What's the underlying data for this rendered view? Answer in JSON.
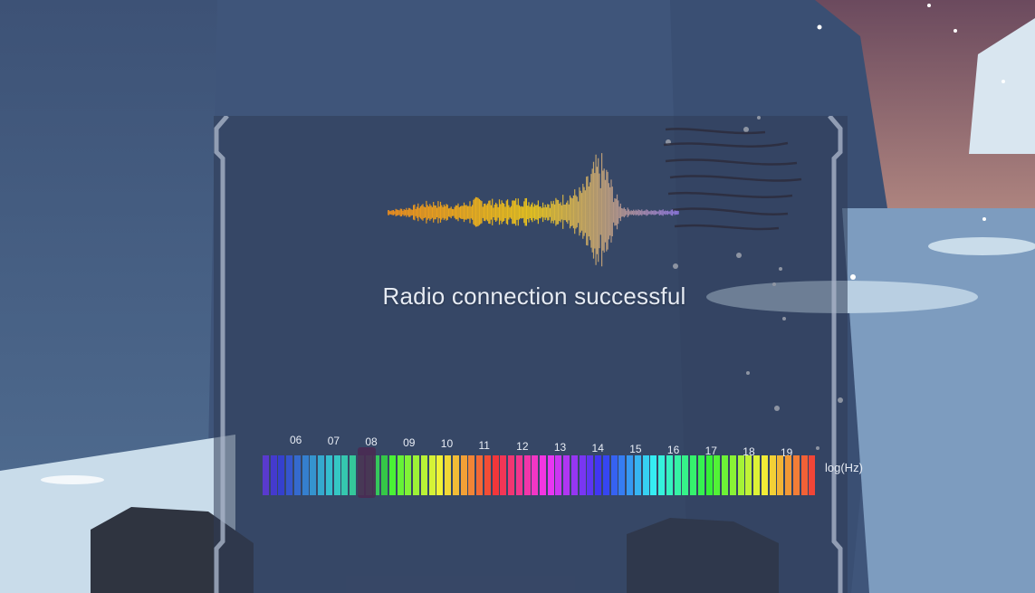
{
  "hud": {
    "status_text": "Radio connection successful",
    "unit_label": "log(Hz)",
    "ticks": [
      "06",
      "07",
      "08",
      "09",
      "10",
      "11",
      "12",
      "13",
      "14",
      "15",
      "16",
      "17",
      "18",
      "19"
    ],
    "selected_tick": "08",
    "colors": {
      "wave_start": "#e98c1e",
      "wave_mid": "#e6c21f",
      "wave_end": "#8a74d8",
      "spectrum_start": "#6b4cf0",
      "spectrum_end": "#ff2d55",
      "handle": "#4a2b52"
    }
  }
}
